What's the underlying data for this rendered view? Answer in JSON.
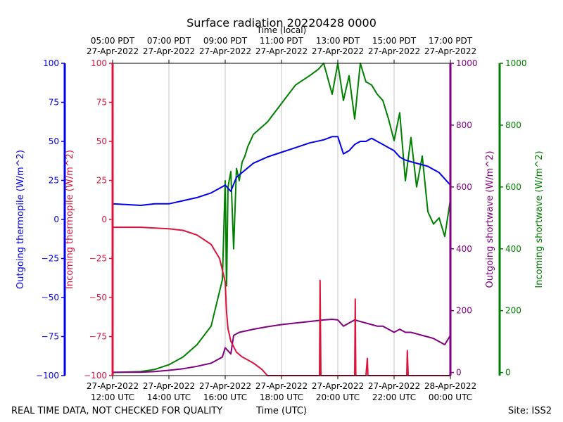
{
  "chart_data": {
    "type": "line",
    "title": "Surface radiation 20220428 0000",
    "top_axis_label": "Time (local)",
    "xlabel": "Time (UTC)",
    "footer_left": "REAL TIME DATA, NOT CHECKED FOR QUALITY",
    "footer_right": "Site: ISS2",
    "x_range_hours": [
      12,
      24
    ],
    "grid": true,
    "bottom_ticks": [
      {
        "h": 12,
        "date": "27-Apr-2022",
        "time": "12:00 UTC"
      },
      {
        "h": 14,
        "date": "27-Apr-2022",
        "time": "14:00 UTC"
      },
      {
        "h": 16,
        "date": "27-Apr-2022",
        "time": "16:00 UTC"
      },
      {
        "h": 18,
        "date": "27-Apr-2022",
        "time": "18:00 UTC"
      },
      {
        "h": 20,
        "date": "27-Apr-2022",
        "time": "20:00 UTC"
      },
      {
        "h": 22,
        "date": "27-Apr-2022",
        "time": "22:00 UTC"
      },
      {
        "h": 24,
        "date": "28-Apr-2022",
        "time": "00:00 UTC"
      }
    ],
    "top_ticks": [
      {
        "h": 12,
        "time": "05:00 PDT",
        "date": "27-Apr-2022"
      },
      {
        "h": 14,
        "time": "07:00 PDT",
        "date": "27-Apr-2022"
      },
      {
        "h": 16,
        "time": "09:00 PDT",
        "date": "27-Apr-2022"
      },
      {
        "h": 18,
        "time": "11:00 PDT",
        "date": "27-Apr-2022"
      },
      {
        "h": 20,
        "time": "13:00 PDT",
        "date": "27-Apr-2022"
      },
      {
        "h": 22,
        "time": "15:00 PDT",
        "date": "27-Apr-2022"
      },
      {
        "h": 24,
        "time": "17:00 PDT",
        "date": "27-Apr-2022"
      }
    ],
    "axes": [
      {
        "id": "outgoing_thermopile",
        "label": "Outgoing thermopile (W/m^2)",
        "color": "#0000ee",
        "ylim": [
          -100,
          100
        ],
        "ticks": [
          "-100",
          "-75",
          "-50",
          "-25",
          "0",
          "25",
          "50",
          "75",
          "100"
        ]
      },
      {
        "id": "incoming_thermopile",
        "label": "Incoming thermopile (W/m^2)",
        "color": "#dc143c",
        "ylim": [
          -100,
          100
        ],
        "ticks": [
          "-100",
          "-75",
          "-50",
          "-25",
          "0",
          "25",
          "50",
          "75",
          "100"
        ]
      },
      {
        "id": "outgoing_shortwave",
        "label": "Outgoing shortwave (W/m^2)",
        "color": "#800080",
        "ylim": [
          -10,
          1000
        ],
        "ticks": [
          "0",
          "200",
          "400",
          "600",
          "800",
          "1000"
        ]
      },
      {
        "id": "incoming_shortwave",
        "label": "Incoming shortwave (W/m^2)",
        "color": "#008000",
        "ylim": [
          -10,
          1000
        ],
        "ticks": [
          "0",
          "200",
          "400",
          "600",
          "800",
          "1000"
        ]
      }
    ],
    "series": [
      {
        "axis": "incoming_shortwave",
        "color": "#008000",
        "x": [
          12,
          13,
          13.5,
          14,
          14.5,
          15,
          15.5,
          15.9,
          16,
          16.05,
          16.1,
          16.2,
          16.3,
          16.4,
          16.5,
          16.6,
          16.7,
          16.8,
          16.9,
          17,
          17.5,
          18,
          18.5,
          19,
          19.3,
          19.5,
          19.8,
          20,
          20.2,
          20.4,
          20.6,
          20.8,
          21,
          21.2,
          21.4,
          21.6,
          21.8,
          22,
          22.2,
          22.4,
          22.6,
          22.8,
          23,
          23.2,
          23.4,
          23.6,
          23.8,
          24
        ],
        "y": [
          0,
          3,
          10,
          25,
          50,
          90,
          150,
          300,
          620,
          280,
          600,
          650,
          400,
          660,
          620,
          680,
          700,
          730,
          750,
          770,
          810,
          870,
          930,
          960,
          980,
          1000,
          900,
          1000,
          880,
          960,
          820,
          1000,
          940,
          930,
          900,
          880,
          820,
          750,
          840,
          620,
          760,
          600,
          700,
          520,
          480,
          500,
          440,
          560
        ]
      },
      {
        "axis": "outgoing_shortwave",
        "color": "#800080",
        "x": [
          12,
          13,
          13.5,
          14,
          14.5,
          15,
          15.5,
          15.9,
          16,
          16.2,
          16.3,
          16.5,
          17,
          17.5,
          18,
          18.5,
          19,
          19.5,
          19.8,
          20,
          20.2,
          20.4,
          20.6,
          20.8,
          21,
          21.2,
          21.4,
          21.6,
          21.8,
          22,
          22.2,
          22.4,
          22.6,
          22.8,
          23,
          23.2,
          23.4,
          23.6,
          23.8,
          24
        ],
        "y": [
          1,
          1,
          3,
          7,
          12,
          20,
          30,
          50,
          80,
          60,
          120,
          130,
          140,
          148,
          155,
          160,
          165,
          170,
          172,
          170,
          150,
          160,
          170,
          165,
          160,
          155,
          150,
          150,
          140,
          130,
          140,
          130,
          130,
          125,
          120,
          115,
          110,
          100,
          90,
          120
        ]
      },
      {
        "axis": "outgoing_thermopile",
        "color": "#0000ee",
        "x": [
          12,
          13,
          13.5,
          14,
          14.5,
          15,
          15.5,
          16,
          16.2,
          16.4,
          16.6,
          16.8,
          17,
          17.5,
          18,
          18.5,
          19,
          19.5,
          19.8,
          20,
          20.2,
          20.4,
          20.6,
          20.8,
          21,
          21.2,
          21.4,
          21.6,
          21.8,
          22,
          22.2,
          22.4,
          22.6,
          22.8,
          23,
          23.2,
          23.4,
          23.6,
          23.8,
          24
        ],
        "y": [
          10,
          9,
          10,
          10,
          12,
          14,
          17,
          22,
          18,
          27,
          30,
          33,
          36,
          40,
          43,
          46,
          49,
          51,
          53,
          53,
          42,
          44,
          48,
          50,
          50,
          52,
          50,
          48,
          46,
          44,
          40,
          38,
          37,
          36,
          35,
          34,
          32,
          30,
          26,
          22
        ]
      },
      {
        "axis": "incoming_thermopile",
        "color": "#dc143c",
        "x": [
          12,
          12.5,
          13,
          13.5,
          14,
          14.5,
          15,
          15.5,
          15.8,
          16,
          16.05,
          16.1,
          16.2,
          16.4,
          16.6,
          16.8,
          17,
          17.3,
          17.5,
          17.7,
          18,
          19,
          19.35,
          19.37,
          19.4,
          19.5,
          20,
          20.6,
          20.62,
          20.64,
          20.7,
          21,
          21.05,
          21.07,
          21.1,
          21.5,
          22,
          22.45,
          22.47,
          22.5,
          23,
          24
        ],
        "y": [
          -5,
          -5,
          -5,
          -5.5,
          -6,
          -7,
          -10,
          -16,
          -25,
          -40,
          -60,
          -70,
          -78,
          -85,
          -88,
          -90,
          -92,
          -96,
          -100,
          -100,
          -100,
          -100,
          -100,
          -39,
          -100,
          -100,
          -100,
          -100,
          -51,
          -100,
          -100,
          -100,
          -89,
          -100,
          -100,
          -100,
          -100,
          -100,
          -84,
          -100,
          -100,
          -100
        ]
      }
    ]
  }
}
